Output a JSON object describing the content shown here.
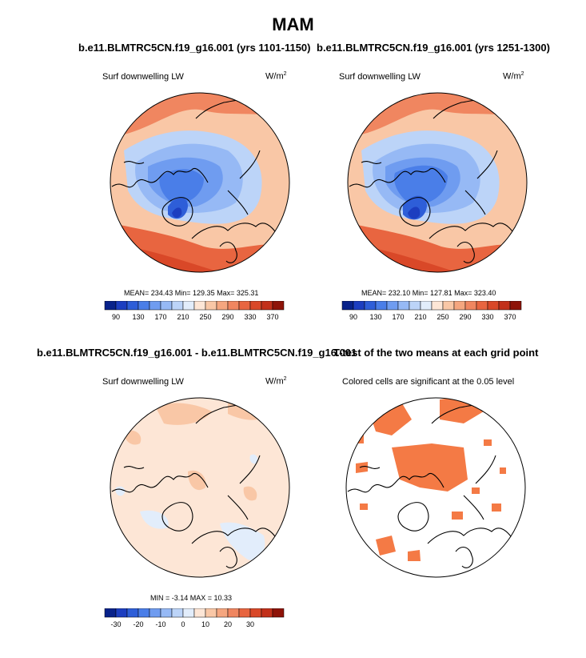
{
  "figure": {
    "title": "MAM"
  },
  "panels": {
    "p1": {
      "title": "b.e11.BLMTRC5CN.f19_g16.001 (yrs 1101-1150)",
      "variable": "Surf downwelling LW",
      "units_base": "W/m",
      "units_exp": "2",
      "stats": "MEAN= 234.43  Min= 129.35  Max= 325.31"
    },
    "p2": {
      "title": "b.e11.BLMTRC5CN.f19_g16.001 (yrs 1251-1300)",
      "variable": "Surf downwelling LW",
      "units_base": "W/m",
      "units_exp": "2",
      "stats": "MEAN= 232.10  Min= 127.81  Max= 323.40"
    },
    "p3": {
      "title": "b.e11.BLMTRC5CN.f19_g16.001 - b.e11.BLMTRC5CN.f19_g16.001",
      "variable": "Surf downwelling LW",
      "units_base": "W/m",
      "units_exp": "2",
      "stats": "MIN =  -3.14 MAX =  10.33"
    },
    "p4": {
      "title": "T-test of the two means at each grid point",
      "subtitle": "Colored cells are significant at the 0.05 level"
    }
  },
  "colorbars": {
    "absolute": {
      "colors": [
        "#08228a",
        "#1c3ec0",
        "#2e5ed8",
        "#4a7ee8",
        "#6f9cf0",
        "#96b9f5",
        "#bcd4f8",
        "#e2edfb",
        "#fde6d6",
        "#f9c7a6",
        "#f5a67f",
        "#f08660",
        "#e86540",
        "#d94828",
        "#c2301a",
        "#8e1308"
      ],
      "tick_labels": [
        "90",
        "130",
        "170",
        "210",
        "250",
        "290",
        "330",
        "370"
      ]
    },
    "difference": {
      "colors": [
        "#08228a",
        "#1c3ec0",
        "#2e5ed8",
        "#4a7ee8",
        "#6f9cf0",
        "#96b9f5",
        "#bcd4f8",
        "#e2edfb",
        "#fde6d6",
        "#f9c7a6",
        "#f5a67f",
        "#f08660",
        "#e86540",
        "#d94828",
        "#c2301a",
        "#8e1308"
      ],
      "tick_labels": [
        "-30",
        "-20",
        "-10",
        "0",
        "10",
        "20",
        "30"
      ]
    }
  },
  "colors": {
    "significant": "#f47a45",
    "coast": "#000000"
  }
}
